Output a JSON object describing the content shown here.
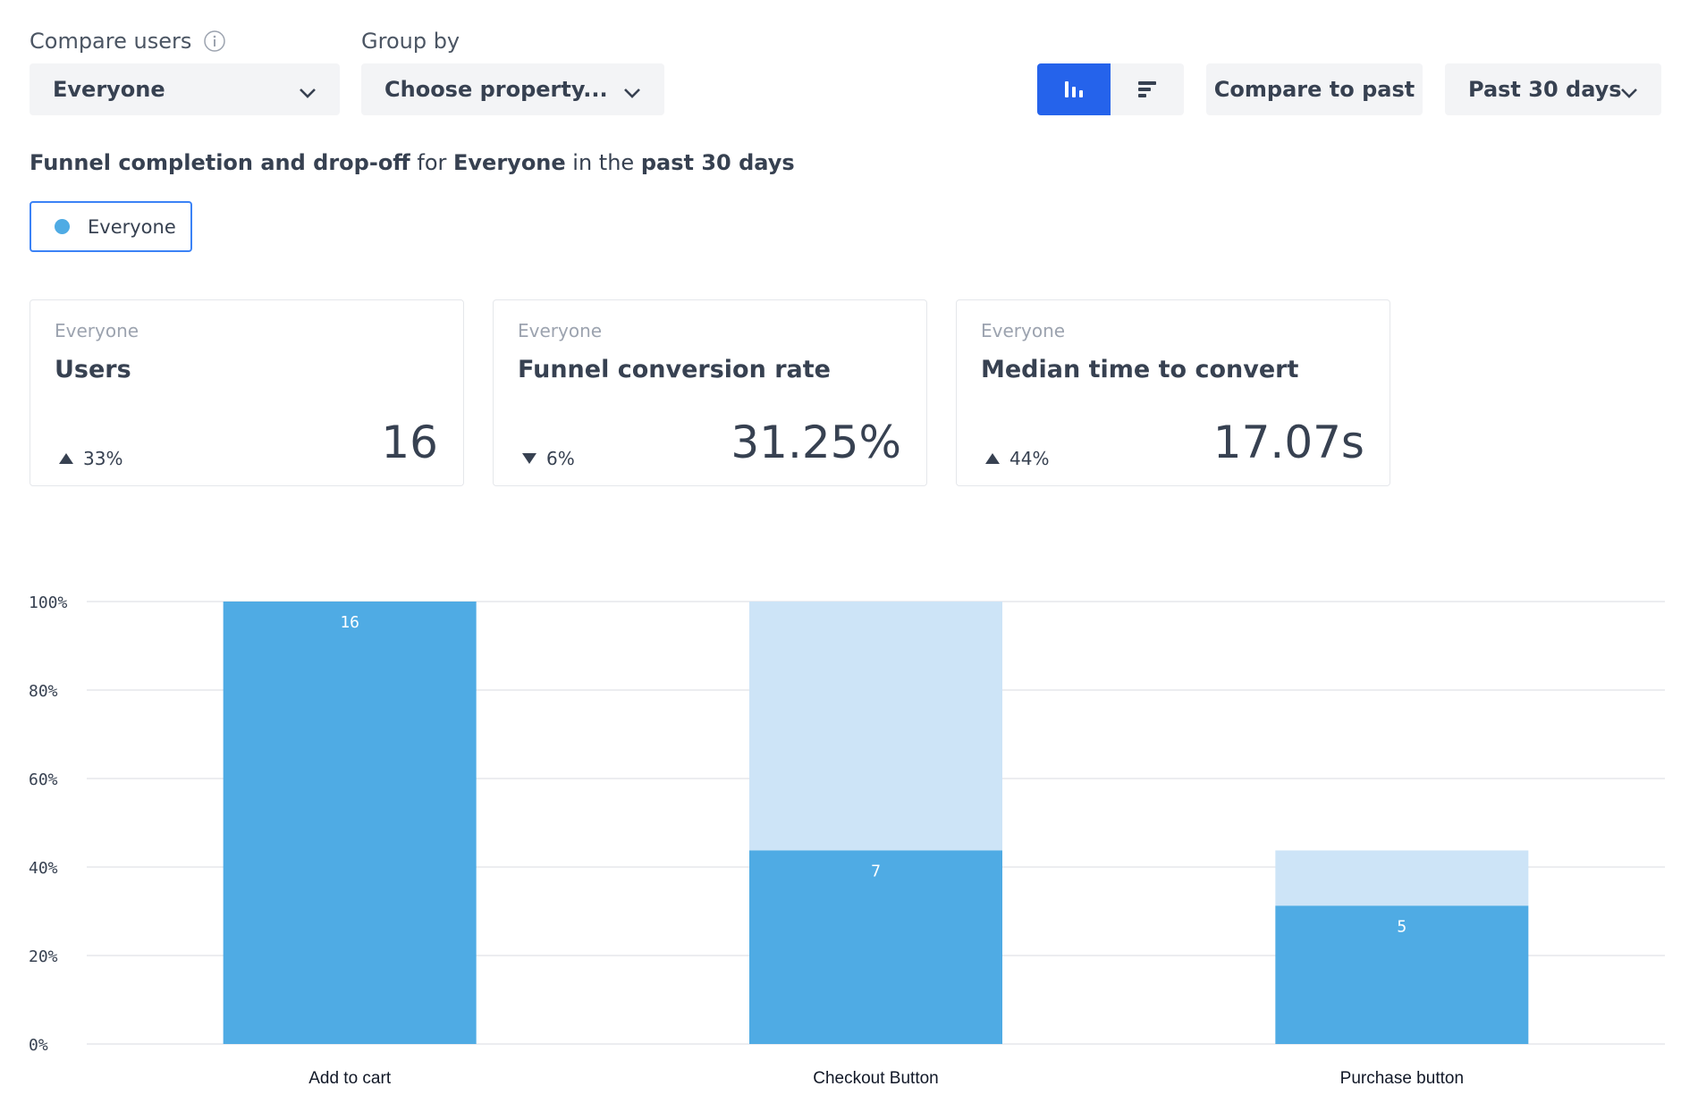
{
  "filters": {
    "compare_users_label": "Compare users",
    "compare_users_value": "Everyone",
    "group_by_label": "Group by",
    "group_by_value": "Choose property..."
  },
  "toolbar": {
    "chart_type_options": [
      "vertical-bars",
      "horizontal-bars"
    ],
    "chart_type_selected": "vertical-bars",
    "compare_button": "Compare to past",
    "date_range": "Past 30 days"
  },
  "headline": {
    "part1": "Funnel completion and drop-off",
    "part2": " for ",
    "segment": "Everyone",
    "part3": " in the ",
    "period": "past 30 days"
  },
  "legend": {
    "label": "Everyone",
    "color": "#4fabe4"
  },
  "metrics": [
    {
      "segment": "Everyone",
      "title": "Users",
      "direction": "up",
      "delta": "33%",
      "value": "16"
    },
    {
      "segment": "Everyone",
      "title": "Funnel conversion rate",
      "direction": "down",
      "delta": "6%",
      "value": "31.25%"
    },
    {
      "segment": "Everyone",
      "title": "Median time to convert",
      "direction": "up",
      "delta": "44%",
      "value": "17.07s"
    }
  ],
  "colors": {
    "accent": "#2563eb",
    "bar_converted": "#4fabe4",
    "bar_dropoff": "#cde4f7",
    "gridline": "#e5e7eb"
  },
  "chart_data": {
    "type": "bar",
    "stacked": true,
    "categories": [
      "Add to cart",
      "Checkout Button",
      "Purchase button"
    ],
    "series": [
      {
        "name": "Everyone",
        "values": [
          100,
          43.75,
          31.25
        ],
        "labels": [
          "16",
          "7",
          "5"
        ]
      },
      {
        "values": [
          0,
          56.25,
          12.5
        ]
      }
    ],
    "yticks": [
      "100%",
      "80%",
      "60%",
      "40%",
      "20%",
      "0%"
    ],
    "ylim": [
      0,
      100
    ],
    "grid": true
  }
}
